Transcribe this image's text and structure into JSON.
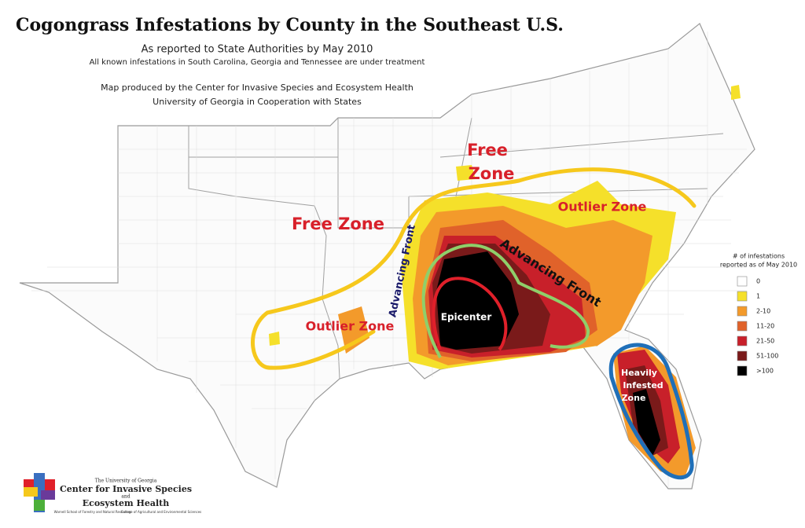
{
  "header": {
    "title": "Cogongrass Infestations by County in the Southeast U.S.",
    "subtitle": "As reported to State Authorities by May 2010",
    "note": "All known infestations in South Carolina, Georgia and Tennessee are under treatment",
    "credit": [
      "Map produced by the Center for Invasive Species and Ecosystem Health",
      "University of Georgia in Cooperation with States"
    ]
  },
  "map": {
    "labels": {
      "free_zone_north": [
        "Free",
        "Zone"
      ],
      "free_zone_west": "Free Zone",
      "outlier_zone_east": "Outlier Zone",
      "outlier_zone_west": "Outlier Zone",
      "advancing_front_west": "Advancing Front",
      "advancing_front_east": "Advancing Front",
      "epicenter": "Epicenter",
      "heavily_infested": [
        "Heavily",
        "Infested",
        "Zone"
      ]
    }
  },
  "legend": {
    "title": [
      "# of infestations",
      "reported as of May 2010"
    ],
    "items": [
      {
        "label": "0",
        "color": "#ffffff"
      },
      {
        "label": "1",
        "color": "#f5e02a"
      },
      {
        "label": "2-10",
        "color": "#f39a2b"
      },
      {
        "label": "11-20",
        "color": "#e0622a"
      },
      {
        "label": "21-50",
        "color": "#c8202a"
      },
      {
        "label": "51-100",
        "color": "#7a1a1a"
      },
      {
        "label": ">100",
        "color": "#000000"
      }
    ]
  },
  "logo": {
    "university": "The University of Georgia",
    "line1": "Center for Invasive Species",
    "and": "and",
    "line2": "Ecosystem Health",
    "school1": "Warnell School of Forestry and Natural Resources",
    "school2": "College of Agricultural and Environmental Sciences"
  }
}
